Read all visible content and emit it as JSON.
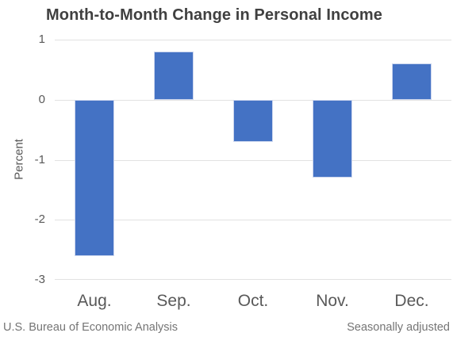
{
  "title": "Month-to-Month Change in Personal Income",
  "footer": {
    "left": "U.S. Bureau of Economic Analysis",
    "right": "Seasonally adjusted"
  },
  "chart_data": {
    "type": "bar",
    "title": "Month-to-Month Change in Personal Income",
    "categories": [
      "Aug.",
      "Sep.",
      "Oct.",
      "Nov.",
      "Dec."
    ],
    "values": [
      -2.6,
      0.8,
      -0.7,
      -1.3,
      0.6
    ],
    "xlabel": "",
    "ylabel": "Percent",
    "ylim": [
      -3,
      1
    ],
    "yticks": [
      1,
      0,
      -1,
      -2,
      -3
    ],
    "grid": true,
    "legend": "none",
    "bar_color": "#4472C4",
    "bar_border_color": "#ccd6ee",
    "gridline_color": "#e2e2e2",
    "title_color": "#404040",
    "axis_text_color": "#595959",
    "footer_text_color": "#757575",
    "background_color": "#ffffff"
  }
}
